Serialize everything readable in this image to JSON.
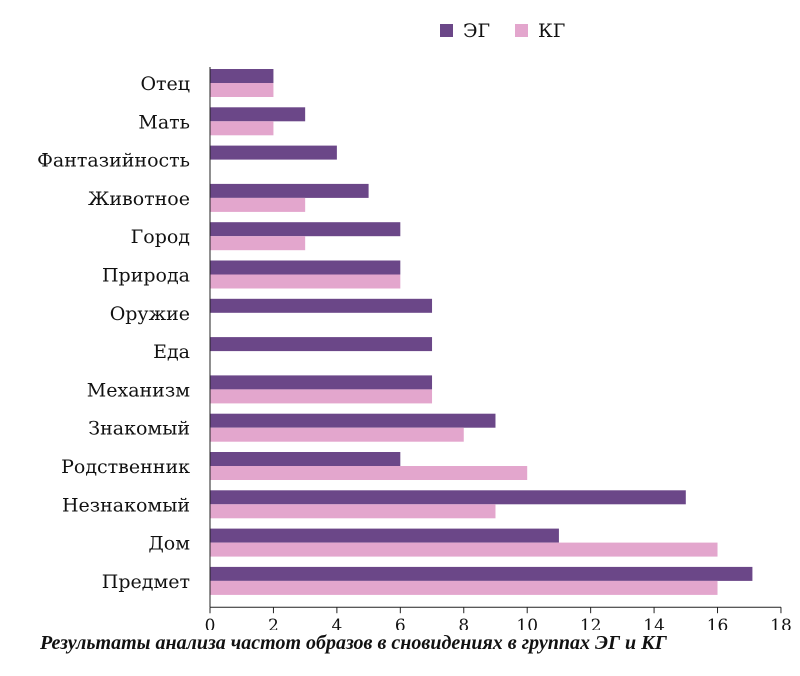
{
  "chart_data": {
    "type": "bar",
    "orientation": "horizontal",
    "categories": [
      "Отец",
      "Мать",
      "Фантазийность",
      "Животное",
      "Город",
      "Природа",
      "Оружие",
      "Еда",
      "Механизм",
      "Знакомый",
      "Родственник",
      "Незнакомый",
      "Дом",
      "Предмет"
    ],
    "series": [
      {
        "name": "ЭГ",
        "color": "#6b4788",
        "values": [
          2,
          3,
          4,
          5,
          6,
          6,
          7,
          7,
          7,
          9,
          6,
          15,
          11,
          17.1
        ]
      },
      {
        "name": "КГ",
        "color": "#e3a6cd",
        "values": [
          2,
          2,
          0,
          3,
          3,
          6,
          0,
          0,
          7,
          8,
          10,
          9,
          16,
          16
        ]
      }
    ],
    "xlim": [
      0,
      18
    ],
    "xticks": [
      "0",
      "2",
      "4",
      "6",
      "8",
      "10",
      "12",
      "14",
      "16",
      "18"
    ],
    "title": "",
    "xlabel": "",
    "ylabel": "",
    "legend_position": "top",
    "grid": false
  },
  "caption": "Результаты анализа частот образов в сновидениях в группах ЭГ и КГ"
}
